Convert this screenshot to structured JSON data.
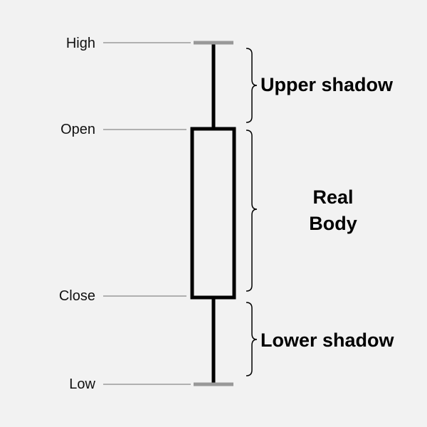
{
  "levels": {
    "high": "High",
    "open": "Open",
    "close": "Close",
    "low": "Low"
  },
  "sections": {
    "upper_shadow": "Upper shadow",
    "real_body_line1": "Real",
    "real_body_line2": "Body",
    "lower_shadow": "Lower shadow"
  },
  "colors": {
    "background": "#f2f2f2",
    "candle": "#000000",
    "body_fill": "#f2f2f2",
    "tick": "#999999",
    "leader_line": "#999999",
    "brace": "#000000"
  }
}
